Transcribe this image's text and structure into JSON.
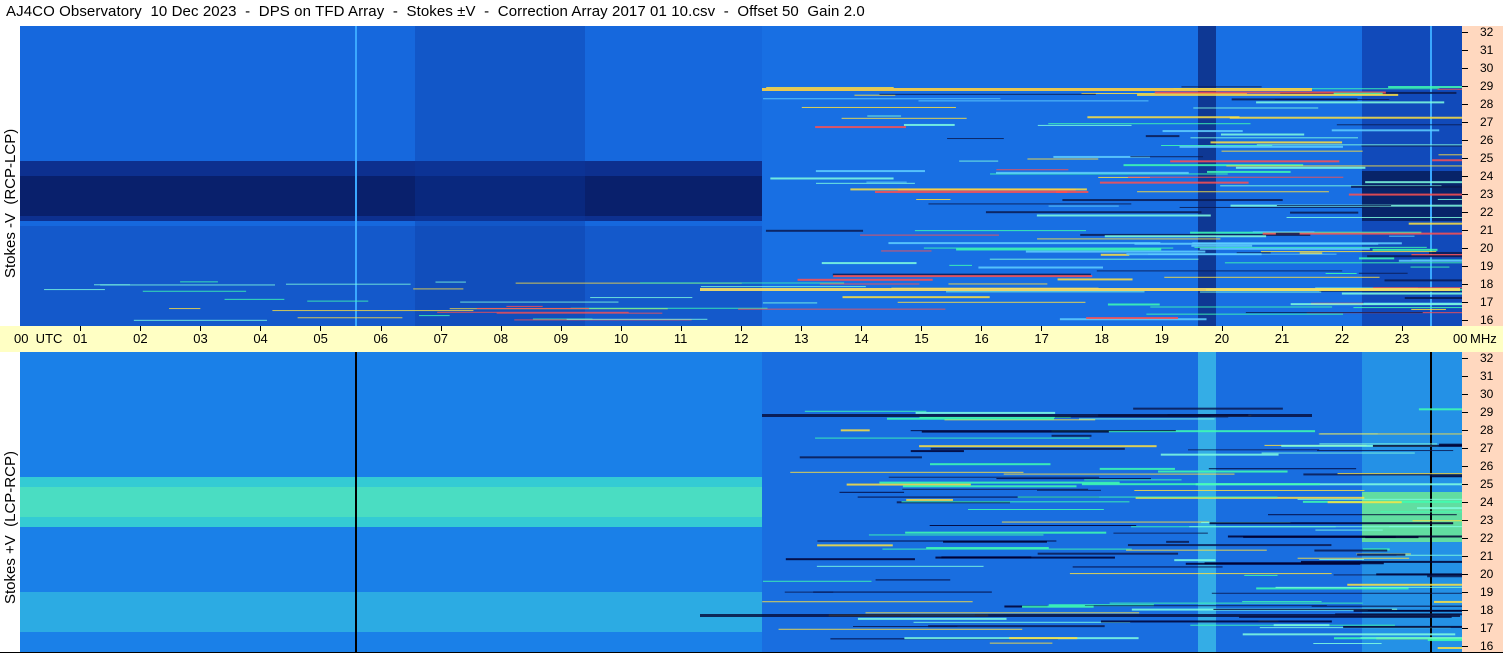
{
  "title": "AJ4CO Observatory  10 Dec 2023  -  DPS on TFD Array  -  Stokes ±V  -  Correction Array 2017 01 10.csv  -  Offset 50  Gain 2.0",
  "colors": {
    "background_quiet_top": "#1560d8",
    "background_quiet_bottom": "#1a8ae8",
    "strong_negative": "#0a1f6a",
    "strong_positive": "#3be0c0",
    "hot": "#ff3030",
    "time_axis_bg": "#ffffc4",
    "freq_axis_bg": "#ffd8bf"
  },
  "chart_data": [
    {
      "type": "heatmap",
      "panel": "top",
      "ylabel": "Stokes -V  (RCP-LCP)",
      "xlabel_start": "00  UTC",
      "x_ticks": [
        "01",
        "02",
        "03",
        "04",
        "05",
        "06",
        "07",
        "08",
        "09",
        "10",
        "11",
        "12",
        "13",
        "14",
        "15",
        "16",
        "17",
        "18",
        "19",
        "20",
        "21",
        "22",
        "23"
      ],
      "x_end_label": "00",
      "x_unit_hours": [
        0,
        24
      ],
      "y_ticks": [
        "32",
        "31",
        "30",
        "29",
        "28",
        "27",
        "26",
        "25",
        "24",
        "23",
        "22",
        "21",
        "20",
        "19",
        "18",
        "17",
        "16"
      ],
      "y_unit": "MHz",
      "ylim": [
        16,
        32
      ]
    },
    {
      "type": "heatmap",
      "panel": "bottom",
      "ylabel": "Stokes +V  (LCP-RCP)",
      "x_unit_hours": [
        0,
        24
      ],
      "y_ticks": [
        "32",
        "31",
        "30",
        "29",
        "28",
        "27",
        "26",
        "25",
        "24",
        "23",
        "22",
        "21",
        "20",
        "19",
        "18",
        "17",
        "16"
      ],
      "y_unit": "MHz",
      "ylim": [
        16,
        32
      ]
    }
  ],
  "time_axis": {
    "start_label": "00  UTC",
    "end_label": "00",
    "unit": "MHz"
  }
}
